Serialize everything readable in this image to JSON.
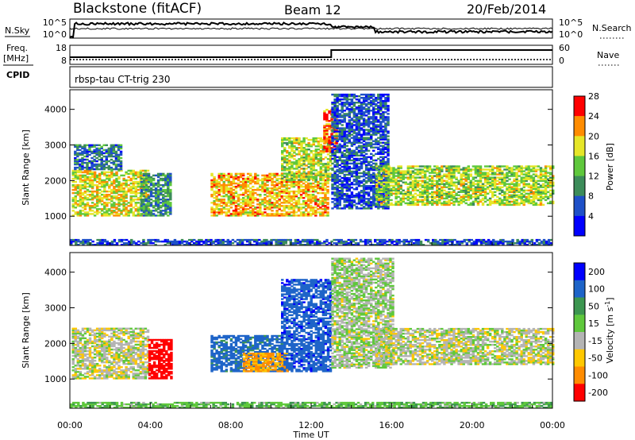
{
  "header": {
    "station": "Blackstone (fitACF)",
    "beam": "Beam 12",
    "date": "20/Feb/2014"
  },
  "noise_panel": {
    "left_label": "N.Sky",
    "right_label": "N.Search",
    "left_ticks": [
      "10^5",
      "10^0"
    ],
    "right_ticks": [
      "10^5",
      "10^0"
    ]
  },
  "freq_panel": {
    "left_label_1": "Freq.",
    "left_label_2": "[MHz]",
    "right_label": "Nave",
    "left_ticks": [
      "18",
      "8"
    ],
    "right_ticks": [
      "60",
      "0"
    ]
  },
  "cpid": {
    "label": "CPID",
    "text": "rbsp-tau CT-trig 230"
  },
  "chart_data": [
    {
      "type": "heatmap",
      "quantity": "Power",
      "xlabel": "",
      "ylabel": "Slant Range [km]",
      "xlim": [
        0,
        24
      ],
      "ylim": [
        180,
        4550
      ],
      "yticks": [
        1000,
        2000,
        3000,
        4000
      ],
      "colorbar": {
        "label": "Power [dB]",
        "ticks": [
          "4",
          "8",
          "12",
          "16",
          "20",
          "24",
          "28"
        ],
        "colors": [
          "#0000ff",
          "#1e50c8",
          "#3c8c5a",
          "#5fc83c",
          "#e6e628",
          "#ff8c00",
          "#ff0000"
        ]
      },
      "regions": [
        {
          "t0": 0.1,
          "t1": 3.9,
          "r0": 1000,
          "r1": 2300,
          "level": 20
        },
        {
          "t0": 0.2,
          "t1": 2.5,
          "r0": 2300,
          "r1": 3000,
          "level": 10
        },
        {
          "t0": 3.5,
          "t1": 5.0,
          "r0": 1000,
          "r1": 2200,
          "level": 12
        },
        {
          "t0": 7.0,
          "t1": 12.8,
          "r0": 1000,
          "r1": 2200,
          "level": 22
        },
        {
          "t0": 10.5,
          "t1": 12.9,
          "r0": 2000,
          "r1": 3200,
          "level": 18
        },
        {
          "t0": 12.6,
          "t1": 13.2,
          "r0": 2800,
          "r1": 4000,
          "level": 26
        },
        {
          "t0": 13.0,
          "t1": 15.8,
          "r0": 1200,
          "r1": 4400,
          "level": 8
        },
        {
          "t0": 15.2,
          "t1": 24.0,
          "r0": 1300,
          "r1": 2400,
          "level": 18
        },
        {
          "t0": 0.0,
          "t1": 24.0,
          "r0": 180,
          "r1": 330,
          "level": 8
        }
      ]
    },
    {
      "type": "heatmap",
      "quantity": "Velocity",
      "xlabel": "Time UT",
      "ylabel": "Slant Range [km]",
      "xlim": [
        0,
        24
      ],
      "ylim": [
        180,
        4550
      ],
      "yticks": [
        1000,
        2000,
        3000,
        4000
      ],
      "xticks": [
        "00:00",
        "04:00",
        "08:00",
        "12:00",
        "16:00",
        "20:00",
        "00:00"
      ],
      "colorbar": {
        "label": "Velocity [m s",
        "label_sup": "-1",
        "label_end": "]",
        "ticks": [
          "200",
          "100",
          "50",
          "15",
          "-15",
          "-50",
          "-100",
          "-200"
        ],
        "colors": [
          "#0000ff",
          "#1e64c8",
          "#3c9650",
          "#5fc83c",
          "#b4b4b4",
          "#ffc800",
          "#ff8c00",
          "#ff0000"
        ]
      },
      "regions": [
        {
          "t0": 0.1,
          "t1": 3.9,
          "r0": 1000,
          "r1": 2400,
          "level": 0
        },
        {
          "t0": 3.9,
          "t1": 5.0,
          "r0": 1000,
          "r1": 2100,
          "level": -150
        },
        {
          "t0": 7.0,
          "t1": 10.5,
          "r0": 1200,
          "r1": 2200,
          "level": 120
        },
        {
          "t0": 8.6,
          "t1": 10.8,
          "r0": 1200,
          "r1": 1700,
          "level": -60
        },
        {
          "t0": 10.5,
          "t1": 13.0,
          "r0": 1200,
          "r1": 3800,
          "level": 180
        },
        {
          "t0": 13.0,
          "t1": 16.0,
          "r0": 1300,
          "r1": 4400,
          "level": 10
        },
        {
          "t0": 15.2,
          "t1": 24.0,
          "r0": 1400,
          "r1": 2400,
          "level": 0
        },
        {
          "t0": 0.0,
          "t1": 24.0,
          "r0": 180,
          "r1": 330,
          "level": 40
        }
      ]
    }
  ]
}
